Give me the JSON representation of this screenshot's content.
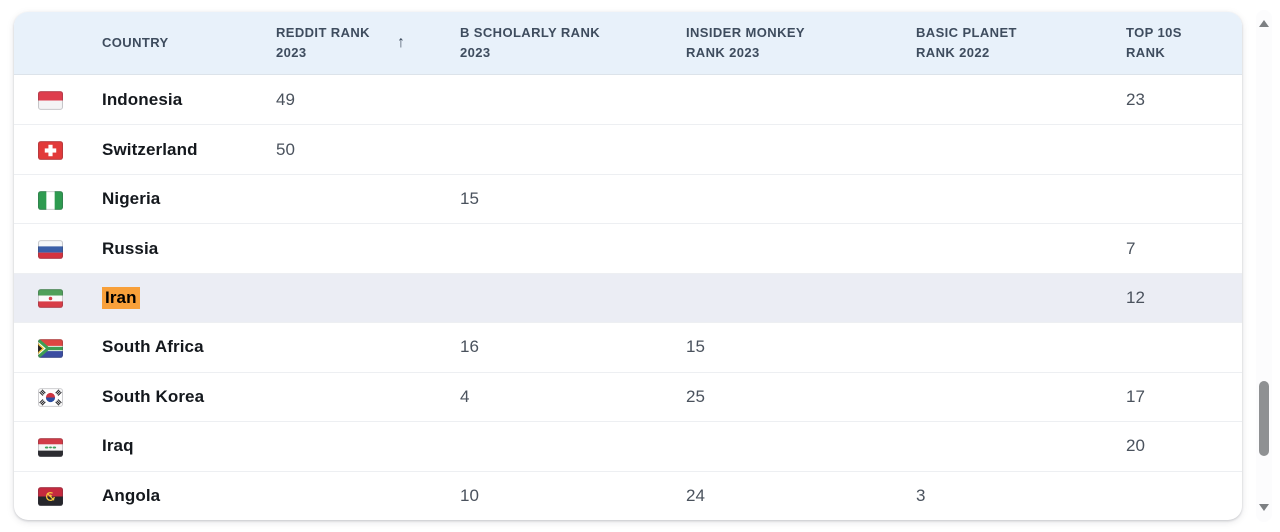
{
  "colors": {
    "page_bg": "#ffffff",
    "card_bg": "#ffffff",
    "header_bg": "#e8f1fa",
    "header_text": "#3e4c5e",
    "header_separator": "#dce3ea",
    "separator": "#edeff2",
    "country_text": "#14181d",
    "value_text": "#4a525d",
    "selected_row_bg": "#ebedf4",
    "highlight_bg": "#f8a03a",
    "scrollbar_thumb": "#8f9193",
    "scrollbar_arrow": "#7d8083",
    "scrollbar_track": "#fcfcfd"
  },
  "icons": {
    "sort_ascending": "↑"
  },
  "table": {
    "columns": [
      {
        "key": "country",
        "label": "COUNTRY"
      },
      {
        "key": "reddit",
        "label": "REDDIT RANK 2023",
        "sort": "asc"
      },
      {
        "key": "b_scholarly",
        "label": "B SCHOLARLY RANK 2023"
      },
      {
        "key": "insider_monkey",
        "label": "INSIDER MONKEY RANK 2023"
      },
      {
        "key": "basic_planet",
        "label": "BASIC PLANET RANK 2022"
      },
      {
        "key": "top_10s",
        "label": "TOP 10S RANK"
      }
    ],
    "rows": [
      {
        "country": "Indonesia",
        "flag_icon": "flag-indonesia",
        "selected": false,
        "name_highlighted": false,
        "values": {
          "reddit": "49",
          "b_scholarly": "",
          "insider_monkey": "",
          "basic_planet": "",
          "top_10s": "23"
        }
      },
      {
        "country": "Switzerland",
        "flag_icon": "flag-switzerland",
        "selected": false,
        "name_highlighted": false,
        "values": {
          "reddit": "50",
          "b_scholarly": "",
          "insider_monkey": "",
          "basic_planet": "",
          "top_10s": ""
        }
      },
      {
        "country": "Nigeria",
        "flag_icon": "flag-nigeria",
        "selected": false,
        "name_highlighted": false,
        "values": {
          "reddit": "",
          "b_scholarly": "15",
          "insider_monkey": "",
          "basic_planet": "",
          "top_10s": ""
        }
      },
      {
        "country": "Russia",
        "flag_icon": "flag-russia",
        "selected": false,
        "name_highlighted": false,
        "values": {
          "reddit": "",
          "b_scholarly": "",
          "insider_monkey": "",
          "basic_planet": "",
          "top_10s": "7"
        }
      },
      {
        "country": "Iran",
        "flag_icon": "flag-iran",
        "selected": true,
        "name_highlighted": true,
        "values": {
          "reddit": "",
          "b_scholarly": "",
          "insider_monkey": "",
          "basic_planet": "",
          "top_10s": "12"
        }
      },
      {
        "country": "South Africa",
        "flag_icon": "flag-south-africa",
        "selected": false,
        "name_highlighted": false,
        "values": {
          "reddit": "",
          "b_scholarly": "16",
          "insider_monkey": "15",
          "basic_planet": "",
          "top_10s": ""
        }
      },
      {
        "country": "South Korea",
        "flag_icon": "flag-south-korea",
        "selected": false,
        "name_highlighted": false,
        "values": {
          "reddit": "",
          "b_scholarly": "4",
          "insider_monkey": "25",
          "basic_planet": "",
          "top_10s": "17"
        }
      },
      {
        "country": "Iraq",
        "flag_icon": "flag-iraq",
        "selected": false,
        "name_highlighted": false,
        "values": {
          "reddit": "",
          "b_scholarly": "",
          "insider_monkey": "",
          "basic_planet": "",
          "top_10s": "20"
        }
      },
      {
        "country": "Angola",
        "flag_icon": "flag-angola",
        "selected": false,
        "name_highlighted": false,
        "values": {
          "reddit": "",
          "b_scholarly": "10",
          "insider_monkey": "24",
          "basic_planet": "3",
          "top_10s": ""
        }
      }
    ]
  }
}
